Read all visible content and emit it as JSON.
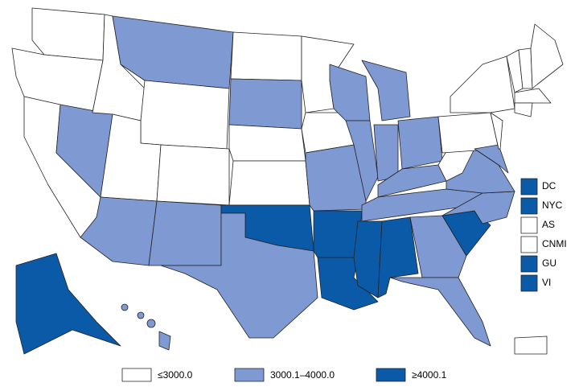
{
  "legend": [
    {
      "label": "≤3000.0",
      "color": "#ffffff"
    },
    {
      "label": "3000.1–4000.0",
      "color": "#7f99d2"
    },
    {
      "label": "≥4000.1",
      "color": "#0a5aa8"
    }
  ],
  "territories": [
    {
      "label": "DC",
      "color": "#0a5aa8"
    },
    {
      "label": "NYC",
      "color": "#0a5aa8"
    },
    {
      "label": "AS",
      "color": "#ffffff"
    },
    {
      "label": "CNMI",
      "color": "#ffffff"
    },
    {
      "label": "GU",
      "color": "#0a5aa8"
    },
    {
      "label": "VI",
      "color": "#0a5aa8"
    }
  ]
}
